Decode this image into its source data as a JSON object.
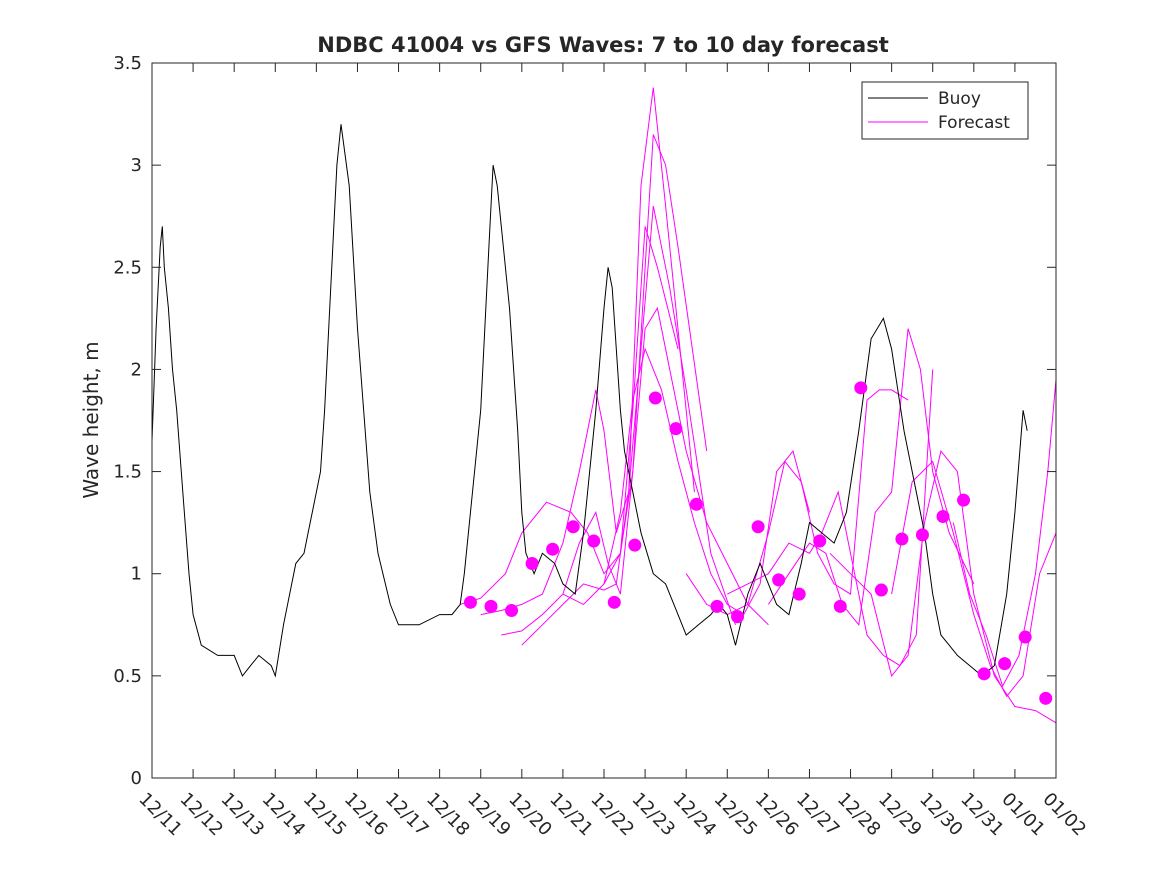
{
  "chart_data": {
    "type": "line",
    "title": "NDBC 41004 vs GFS Waves: 7 to 10 day forecast",
    "xlabel": "",
    "ylabel": "Wave height, m",
    "xlim": [
      0,
      22
    ],
    "ylim": [
      0,
      3.5
    ],
    "yticks": [
      0,
      0.5,
      1,
      1.5,
      2,
      2.5,
      3,
      3.5
    ],
    "ytick_labels": [
      "0",
      "0.5",
      "1",
      "1.5",
      "2",
      "2.5",
      "3",
      "3.5"
    ],
    "xticks": [
      0,
      1,
      2,
      3,
      4,
      5,
      6,
      7,
      8,
      9,
      10,
      11,
      12,
      13,
      14,
      15,
      16,
      17,
      18,
      19,
      20,
      21,
      22
    ],
    "xtick_labels": [
      "12/11",
      "12/12",
      "12/13",
      "12/14",
      "12/15",
      "12/16",
      "12/17",
      "12/18",
      "12/19",
      "12/20",
      "12/21",
      "12/22",
      "12/23",
      "12/24",
      "12/25",
      "12/26",
      "12/27",
      "12/28",
      "12/29",
      "12/30",
      "12/31",
      "01/01",
      "01/02"
    ],
    "grid": false,
    "legend": {
      "location": "top-right",
      "entries": [
        {
          "label": "Buoy",
          "color": "#000000"
        },
        {
          "label": "Forecast",
          "color": "#ff00ff"
        }
      ]
    },
    "colors": {
      "buoy": "#000000",
      "forecast": "#ff00ff"
    },
    "series": [
      {
        "name": "Buoy",
        "x": [
          0,
          0.1,
          0.2,
          0.25,
          0.3,
          0.4,
          0.5,
          0.6,
          0.75,
          0.9,
          1.0,
          1.2,
          1.6,
          2.0,
          2.2,
          2.4,
          2.6,
          2.9,
          3.0,
          3.2,
          3.5,
          3.7,
          3.8,
          4.0,
          4.1,
          4.2,
          4.3,
          4.4,
          4.5,
          4.6,
          4.8,
          5.0,
          5.3,
          5.5,
          5.8,
          6.0,
          6.5,
          7.0,
          7.3,
          7.5,
          7.6,
          7.8,
          8.0,
          8.1,
          8.2,
          8.3,
          8.4,
          8.5,
          8.7,
          8.9,
          9.0,
          9.1,
          9.3,
          9.5,
          9.8,
          10.0,
          10.3,
          10.5,
          10.8,
          11.0,
          11.1,
          11.2,
          11.3,
          11.4,
          11.5,
          11.7,
          11.9,
          12.2,
          12.5,
          12.8,
          13.0,
          13.3,
          13.6,
          13.8,
          14.0,
          14.2,
          14.5,
          14.8,
          15.0,
          15.2,
          15.5,
          15.8,
          16.0,
          16.3,
          16.6,
          16.9,
          17.2,
          17.5,
          17.8,
          18.0,
          18.3,
          18.5,
          18.8,
          19.0,
          19.2,
          19.4,
          19.6,
          19.9,
          20.2,
          20.5,
          20.8,
          21.0,
          21.1,
          21.2,
          21.3
        ],
        "values": [
          1.65,
          2.2,
          2.6,
          2.7,
          2.5,
          2.3,
          2.0,
          1.8,
          1.4,
          1.0,
          0.8,
          0.65,
          0.6,
          0.6,
          0.5,
          0.55,
          0.6,
          0.55,
          0.5,
          0.75,
          1.05,
          1.1,
          1.2,
          1.4,
          1.5,
          1.8,
          2.2,
          2.6,
          3.0,
          3.2,
          2.9,
          2.2,
          1.4,
          1.1,
          0.85,
          0.75,
          0.75,
          0.8,
          0.8,
          0.85,
          1.0,
          1.4,
          1.8,
          2.2,
          2.6,
          3.0,
          2.9,
          2.7,
          2.3,
          1.7,
          1.3,
          1.1,
          1.0,
          1.1,
          1.05,
          0.95,
          0.9,
          1.2,
          1.8,
          2.3,
          2.5,
          2.4,
          2.1,
          1.8,
          1.6,
          1.4,
          1.2,
          1.0,
          0.95,
          0.8,
          0.7,
          0.75,
          0.8,
          0.85,
          0.8,
          0.65,
          0.9,
          1.05,
          0.95,
          0.85,
          0.8,
          1.05,
          1.25,
          1.2,
          1.15,
          1.3,
          1.7,
          2.15,
          2.25,
          2.1,
          1.7,
          1.5,
          1.2,
          0.9,
          0.7,
          0.65,
          0.6,
          0.55,
          0.5,
          0.55,
          0.9,
          1.3,
          1.55,
          1.8,
          1.7
        ]
      },
      {
        "name": "Forecast",
        "runs": [
          {
            "x": [
              7.5,
              8.0,
              8.6,
              9.0,
              9.6,
              10.2,
              10.6,
              11.0,
              11.4,
              11.7,
              12.0,
              12.3,
              12.8
            ],
            "values": [
              0.85,
              0.88,
              1.0,
              1.2,
              1.35,
              1.3,
              1.2,
              1.0,
              1.1,
              1.8,
              2.7,
              2.5,
              2.1
            ]
          },
          {
            "x": [
              8.0,
              8.5,
              9.0,
              9.5,
              10.0,
              10.4,
              10.8,
              11.0,
              11.3,
              11.6,
              11.9,
              12.2,
              12.5,
              13.2
            ],
            "values": [
              0.8,
              0.82,
              0.85,
              0.9,
              1.15,
              1.5,
              1.9,
              1.7,
              1.2,
              1.4,
              2.9,
              3.38,
              2.8,
              1.4
            ]
          },
          {
            "x": [
              8.5,
              9.0,
              9.5,
              10.0,
              10.4,
              10.8,
              11.1,
              11.4,
              11.7,
              12.0,
              12.2,
              12.5,
              12.8,
              13.5
            ],
            "values": [
              0.7,
              0.72,
              0.8,
              0.9,
              1.15,
              1.3,
              1.05,
              0.9,
              1.5,
              2.5,
              3.15,
              3.0,
              2.6,
              1.6
            ]
          },
          {
            "x": [
              9.0,
              9.5,
              10.0,
              10.5,
              11.0,
              11.3,
              11.6,
              11.9,
              12.2,
              12.6,
              13.0,
              13.6,
              14.2
            ],
            "values": [
              0.65,
              0.75,
              0.85,
              0.95,
              0.92,
              0.95,
              1.4,
              2.1,
              2.8,
              2.4,
              1.9,
              1.1,
              0.75
            ]
          },
          {
            "x": [
              10.0,
              10.5,
              11.0,
              11.4,
              11.7,
              12.0,
              12.3,
              12.6,
              13.0,
              13.5,
              14.0,
              14.5,
              15.0
            ],
            "values": [
              0.9,
              0.85,
              0.95,
              1.1,
              1.5,
              2.2,
              2.3,
              2.0,
              1.6,
              1.25,
              1.05,
              0.85,
              0.75
            ]
          },
          {
            "x": [
              11.0,
              11.4,
              11.7,
              12.0,
              12.4,
              12.8,
              13.2,
              13.6,
              14.0,
              14.4,
              14.8,
              15.2,
              15.6,
              16.0
            ],
            "values": [
              0.95,
              1.3,
              1.85,
              2.1,
              1.9,
              1.55,
              1.25,
              1.0,
              0.85,
              0.8,
              0.95,
              1.5,
              1.6,
              1.3
            ]
          },
          {
            "x": [
              13.0,
              13.5,
              14.0,
              14.5,
              15.0,
              15.4,
              15.8,
              16.2,
              16.6,
              17.0,
              17.4,
              17.7,
              18.0,
              18.4
            ],
            "values": [
              1.0,
              0.85,
              0.8,
              0.85,
              1.2,
              1.55,
              1.45,
              1.1,
              0.95,
              0.9,
              1.85,
              1.9,
              1.9,
              1.85
            ]
          },
          {
            "x": [
              14.0,
              14.5,
              15.0,
              15.5,
              16.0,
              16.3,
              16.7,
              17.0,
              17.4,
              17.8,
              18.2,
              18.6,
              19.0
            ],
            "values": [
              0.9,
              0.95,
              1.0,
              1.15,
              1.1,
              1.2,
              1.4,
              1.1,
              0.7,
              0.6,
              0.55,
              0.7,
              2.0
            ]
          },
          {
            "x": [
              15.0,
              15.5,
              16.0,
              16.4,
              16.8,
              17.2,
              17.6,
              18.0,
              18.4,
              18.7,
              19.0,
              19.4,
              20.0
            ],
            "values": [
              0.85,
              1.0,
              1.15,
              1.1,
              0.85,
              0.75,
              1.3,
              1.4,
              2.2,
              2.0,
              1.5,
              1.2,
              0.95
            ]
          },
          {
            "x": [
              16.5,
              17.0,
              17.5,
              18.0,
              18.4,
              18.8,
              19.2,
              19.6,
              20.0,
              20.5,
              21.0,
              21.5,
              22.0
            ],
            "values": [
              1.1,
              1.0,
              0.9,
              0.5,
              0.6,
              1.25,
              1.6,
              1.5,
              0.9,
              0.5,
              0.35,
              0.33,
              0.27
            ]
          },
          {
            "x": [
              18.0,
              18.5,
              19.0,
              19.5,
              20.0,
              20.4,
              20.8,
              21.2,
              21.6,
              22.0
            ],
            "values": [
              0.9,
              1.45,
              1.55,
              1.2,
              0.8,
              0.55,
              0.4,
              0.5,
              1.0,
              1.2
            ]
          },
          {
            "x": [
              19.5,
              19.9,
              20.3,
              20.7,
              21.1,
              21.5,
              21.8,
              22.0
            ],
            "values": [
              1.25,
              0.9,
              0.7,
              0.45,
              0.6,
              1.0,
              1.5,
              1.95
            ]
          }
        ]
      },
      {
        "name": "Forecast markers",
        "x": [
          7.75,
          8.25,
          8.75,
          9.25,
          9.75,
          10.25,
          10.75,
          11.25,
          11.75,
          12.25,
          12.75,
          13.25,
          13.75,
          14.25,
          14.75,
          15.25,
          15.75,
          16.25,
          16.75,
          17.25,
          17.75,
          18.25,
          18.75,
          19.25,
          19.75,
          20.25,
          20.75,
          21.25,
          21.75
        ],
        "values": [
          0.86,
          0.84,
          0.82,
          1.05,
          1.12,
          1.23,
          1.16,
          0.86,
          1.14,
          1.86,
          1.71,
          1.34,
          0.84,
          0.79,
          1.23,
          0.97,
          0.9,
          1.16,
          0.84,
          1.91,
          0.92,
          1.17,
          1.19,
          1.28,
          1.36,
          0.51,
          0.56,
          0.69,
          0.39
        ]
      }
    ]
  }
}
